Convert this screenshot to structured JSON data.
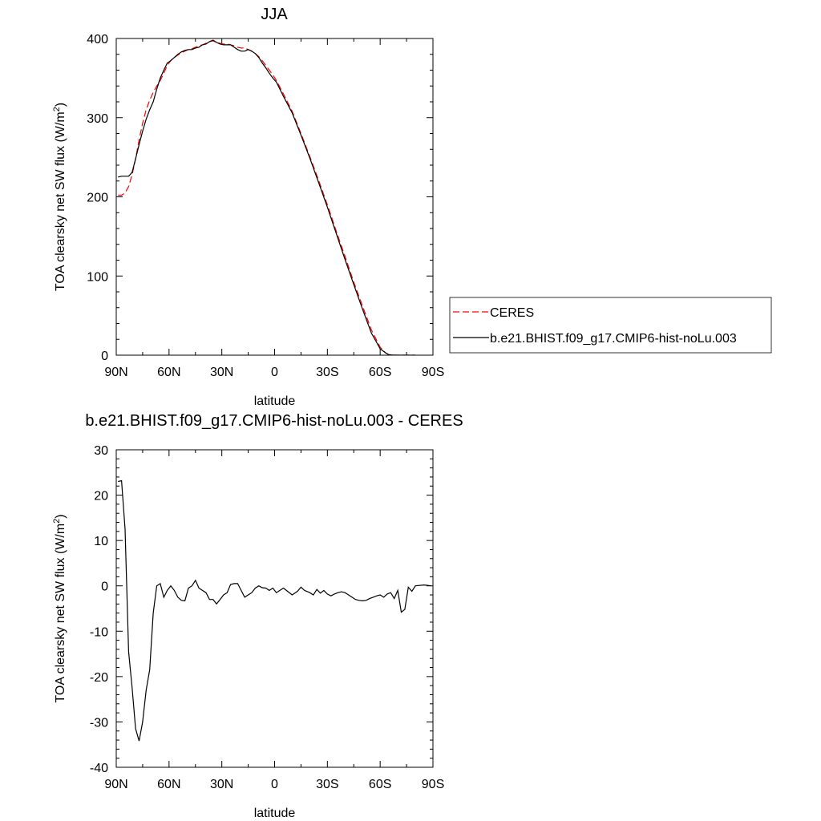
{
  "chart_data": [
    {
      "type": "line",
      "title": "JJA",
      "xlabel": "latitude",
      "ylabel_main": "TOA clearsky net SW flux (W/m",
      "ylabel_sup": "2",
      "ylabel_tail": ")",
      "xlim": [
        90,
        -90
      ],
      "ylim": [
        0,
        400
      ],
      "x_tick_values": [
        90,
        60,
        30,
        0,
        -30,
        -60,
        -90
      ],
      "x_tick_labels": [
        "90N",
        "60N",
        "30N",
        "0",
        "30S",
        "60S",
        "90S"
      ],
      "y_tick_values": [
        0,
        100,
        200,
        300,
        400
      ],
      "y_tick_labels": [
        "0",
        "100",
        "200",
        "300",
        "400"
      ],
      "legend": {
        "position": "right",
        "entries": [
          {
            "name": "CERES",
            "color": "#ff0000",
            "dash": "dashed"
          },
          {
            "name": "b.e21.BHIST.f09_g17.CMIP6-hist-noLu.003",
            "color": "#000000",
            "dash": "solid"
          }
        ]
      },
      "series": [
        {
          "name": "CERES",
          "color": "#ff0000",
          "dash": "dashed",
          "x": [
            89,
            87,
            85,
            83,
            81,
            79,
            77,
            75,
            73,
            71,
            69,
            67,
            65,
            63,
            61,
            59,
            57,
            55,
            53,
            51,
            49,
            47,
            45,
            43,
            41,
            39,
            37,
            35,
            33,
            31,
            29,
            27,
            25,
            23,
            21,
            19,
            17,
            15,
            13,
            11,
            9,
            7,
            5,
            3,
            1,
            -1,
            -5,
            -10,
            -15,
            -20,
            -25,
            -30,
            -35,
            -40,
            -45,
            -50,
            -55,
            -60,
            -63,
            -65,
            -67,
            -70,
            -73,
            -75,
            -77,
            -80
          ],
          "y": [
            202,
            202,
            205,
            213,
            228,
            248,
            272,
            293,
            310,
            322,
            332,
            340,
            347,
            356,
            366,
            372,
            376,
            379,
            382,
            384,
            386,
            387,
            389,
            391,
            392,
            394,
            396,
            397,
            395,
            394,
            393,
            393,
            392,
            391,
            389,
            388,
            388,
            386,
            384,
            381,
            377,
            372,
            366,
            360,
            354,
            347,
            330,
            308,
            280,
            251,
            221,
            190,
            157,
            125,
            92,
            62,
            32,
            10,
            3,
            0.6,
            0.2,
            0.05,
            0,
            0,
            0,
            0
          ]
        },
        {
          "name": "b.e21.BHIST.f09_g17.CMIP6-hist-noLu.003",
          "color": "#000000",
          "dash": "solid",
          "x": [
            89,
            87,
            85,
            83,
            81,
            79,
            77,
            75,
            73,
            71,
            69,
            67,
            65,
            63,
            61,
            59,
            57,
            55,
            53,
            51,
            49,
            47,
            45,
            43,
            41,
            39,
            37,
            35,
            33,
            31,
            29,
            27,
            25,
            23,
            21,
            19,
            17,
            15,
            13,
            11,
            9,
            7,
            5,
            3,
            1,
            -1,
            -5,
            -10,
            -15,
            -20,
            -25,
            -30,
            -35,
            -40,
            -45,
            -50,
            -55,
            -60,
            -63,
            -65,
            -67,
            -70,
            -73,
            -75,
            -77,
            -80
          ],
          "y": [
            225,
            226,
            226,
            226,
            231,
            248,
            266,
            283,
            298,
            310,
            320,
            336,
            350,
            360,
            369,
            372,
            376,
            380,
            383,
            385,
            386,
            386,
            388,
            389,
            392,
            393,
            396,
            398,
            395,
            393,
            392,
            392,
            392,
            389,
            386,
            384,
            384,
            386,
            384,
            381,
            376,
            369,
            363,
            356,
            350,
            345,
            327,
            306,
            278,
            249,
            218,
            187,
            154,
            121,
            89,
            58,
            28,
            8,
            3,
            0.6,
            0.2,
            0.05,
            0,
            0,
            0,
            0
          ]
        }
      ]
    },
    {
      "type": "line",
      "title": "b.e21.BHIST.f09_g17.CMIP6-hist-noLu.003 - CERES",
      "xlabel": "latitude",
      "ylabel_main": "TOA clearsky net SW flux (W/m",
      "ylabel_sup": "2",
      "ylabel_tail": ")",
      "xlim": [
        90,
        -90
      ],
      "ylim": [
        -40,
        30
      ],
      "x_tick_values": [
        90,
        60,
        30,
        0,
        -30,
        -60,
        -90
      ],
      "x_tick_labels": [
        "90N",
        "60N",
        "30N",
        "0",
        "30S",
        "60S",
        "90S"
      ],
      "y_tick_values": [
        -40,
        -30,
        -20,
        -10,
        0,
        10,
        20,
        30
      ],
      "y_tick_labels": [
        "-40",
        "-30",
        "-20",
        "-10",
        "0",
        "10",
        "20",
        "30"
      ],
      "series": [
        {
          "color": "#000000",
          "dash": "solid",
          "x": [
            89,
            87,
            85,
            83,
            81,
            79,
            77,
            75,
            73,
            71,
            69,
            67,
            65,
            63,
            61,
            59,
            57,
            55,
            53,
            51,
            49,
            47,
            45,
            43,
            41,
            39,
            37,
            35,
            33,
            31,
            29,
            27,
            25,
            23,
            21,
            19,
            17,
            15,
            13,
            11,
            9,
            7,
            5,
            3,
            1,
            -1,
            -5,
            -10,
            -13,
            -15,
            -17,
            -20,
            -22,
            -24,
            -26,
            -28,
            -30,
            -32,
            -34,
            -36,
            -38,
            -40,
            -42,
            -44,
            -46,
            -48,
            -50,
            -52,
            -54,
            -56,
            -58,
            -60,
            -62,
            -64,
            -66,
            -68,
            -70,
            -72,
            -74,
            -76,
            -78,
            -80,
            -85,
            -89
          ],
          "y": [
            23,
            23.2,
            12.5,
            -14.5,
            -22.5,
            -31.5,
            -34.2,
            -30,
            -23,
            -18.5,
            -6,
            0,
            0.5,
            -2.5,
            -1,
            0,
            -1,
            -2.5,
            -3.2,
            -3.3,
            -0.5,
            0,
            1.2,
            -0.5,
            -1,
            -1.5,
            -3,
            -3,
            -4,
            -3,
            -2,
            -1.5,
            0.3,
            0.5,
            0.5,
            -1,
            -2.5,
            -2,
            -1.5,
            -0.5,
            0,
            -0.4,
            -0.5,
            -1,
            -0.5,
            -1.5,
            -0.5,
            -2,
            -1.2,
            -0.3,
            -1,
            -1.5,
            -2,
            -0.8,
            -1.6,
            -1,
            -1.8,
            -2.2,
            -1.8,
            -1.5,
            -1.3,
            -1.5,
            -2,
            -2.5,
            -3,
            -3.2,
            -3.3,
            -3.2,
            -2.8,
            -2.5,
            -2.2,
            -2,
            -2.5,
            -1.8,
            -1.5,
            -2.8,
            -1,
            -5.8,
            -5.2,
            -0.3,
            -1.2,
            0,
            0.2,
            0
          ]
        }
      ]
    }
  ]
}
